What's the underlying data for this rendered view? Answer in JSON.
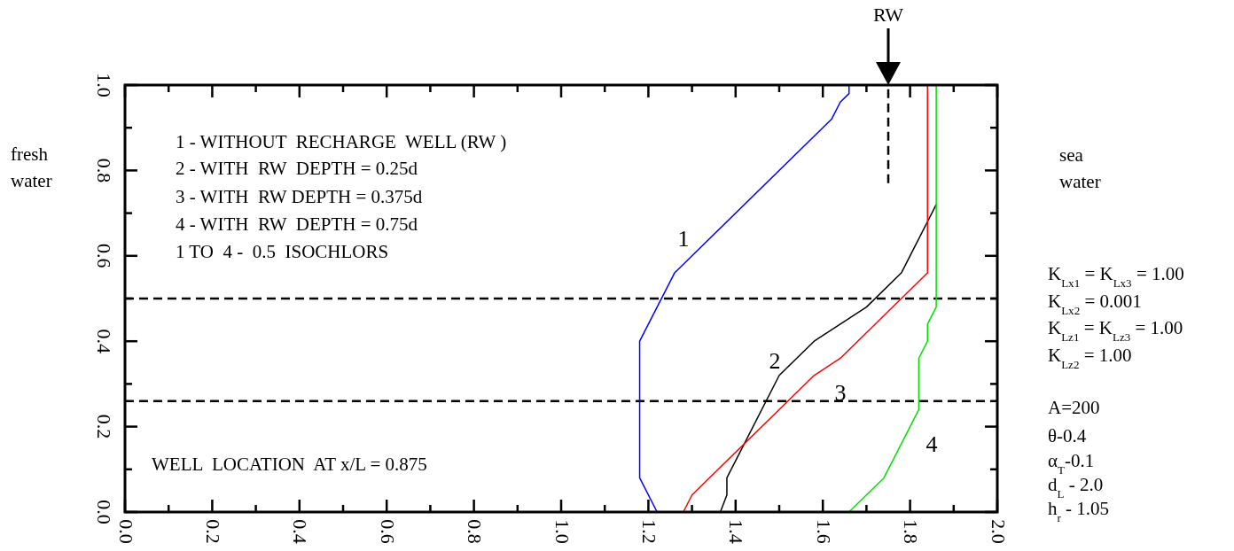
{
  "chart_data": {
    "type": "line",
    "xlim": [
      0,
      2
    ],
    "ylim": [
      0,
      1
    ],
    "xticks": [
      {
        "value": 0,
        "label": "0.0"
      },
      {
        "value": 0.1,
        "label": null
      },
      {
        "value": 0.2,
        "label": "0.2"
      },
      {
        "value": 0.3,
        "label": null
      },
      {
        "value": 0.4,
        "label": "0.4"
      },
      {
        "value": 0.5,
        "label": null
      },
      {
        "value": 0.6,
        "label": "0.6"
      },
      {
        "value": 0.7,
        "label": null
      },
      {
        "value": 0.8,
        "label": "0.8"
      },
      {
        "value": 0.9,
        "label": null
      },
      {
        "value": 1,
        "label": "1.0"
      },
      {
        "value": 1.1,
        "label": null
      },
      {
        "value": 1.2,
        "label": "1.2"
      },
      {
        "value": 1.3,
        "label": null
      },
      {
        "value": 1.4,
        "label": "1.4"
      },
      {
        "value": 1.5,
        "label": null
      },
      {
        "value": 1.6,
        "label": "1.6"
      },
      {
        "value": 1.7,
        "label": null
      },
      {
        "value": 1.8,
        "label": "1.8"
      },
      {
        "value": 1.9,
        "label": null
      },
      {
        "value": 2,
        "label": "2.0"
      }
    ],
    "yticks": [
      {
        "value": 0,
        "label": "0.0"
      },
      {
        "value": 0.1,
        "label": null
      },
      {
        "value": 0.2,
        "label": "0.2"
      },
      {
        "value": 0.3,
        "label": null
      },
      {
        "value": 0.4,
        "label": "0.4"
      },
      {
        "value": 0.5,
        "label": null
      },
      {
        "value": 0.6,
        "label": "0.6"
      },
      {
        "value": 0.7,
        "label": null
      },
      {
        "value": 0.8,
        "label": "0.8"
      },
      {
        "value": 0.9,
        "label": null
      },
      {
        "value": 1,
        "label": "1.0"
      }
    ],
    "series": [
      {
        "color": "#0000ff",
        "x": [
          1.66,
          1.66,
          1.64,
          1.62,
          1.26,
          1.18,
          1.18,
          1.22
        ],
        "values": [
          1.0,
          0.98,
          0.96,
          0.92,
          0.56,
          0.4,
          0.08,
          0
        ]
      },
      {
        "color": "#000000",
        "x": [
          1.365,
          1.38,
          1.38,
          1.5,
          1.58,
          1.7,
          1.78,
          1.86
        ],
        "values": [
          0,
          0.04,
          0.08,
          0.32,
          0.4,
          0.48,
          0.56,
          0.72
        ]
      },
      {
        "color": "#ff0000",
        "x": [
          1.28,
          1.3,
          1.58,
          1.64,
          1.84,
          1.84
        ],
        "values": [
          0,
          0.04,
          0.32,
          0.36,
          0.56,
          1.0
        ]
      },
      {
        "color": "#00e000",
        "x": [
          1.66,
          1.74,
          1.82,
          1.82,
          1.84,
          1.84,
          1.86,
          1.86
        ],
        "values": [
          0,
          0.08,
          0.24,
          0.36,
          0.4,
          0.44,
          0.48,
          1.0
        ]
      },
      {
        "color": "#000000",
        "x": [
          1.75,
          1.75
        ],
        "values": [
          0.77,
          1.0
        ],
        "line_style": "dashed"
      }
    ],
    "ref_lines": [
      {
        "axis": "y",
        "value": 0.5,
        "color": "#000000",
        "line_style": "dashed"
      },
      {
        "axis": "y",
        "value": 0.26,
        "color": "#000000",
        "line_style": "dashed"
      }
    ],
    "annotations": [
      "1 - WITHOUT  RECHARGE  WELL (RW )",
      "2 - WITH  RW  DEPTH = 0.25d",
      "3 - WITH  RW DEPTH = 0.375d",
      "4 - WITH  RW  DEPTH = 0.75d",
      "1 TO  4 -  0.5  ISOCHLORS",
      "WELL  LOCATION  AT x/L = 0.875",
      "fresh\nwater",
      "sea\nwater",
      "K$_{Lx1}$ = K$_{Lx3}$ = 1.00",
      "K$_{Lx2}$ = 0.001",
      "K$_{Lz1}$ = K$_{Lz3}$ = 1.00",
      "K$_{Lz2}$ = 1.00",
      "A=200",
      "θ-0.4",
      "α$_{T}$-0.1",
      "d$_{L}$ - 2.0",
      "h$_{r}$ - 1.05",
      "1",
      "2",
      "3",
      "4",
      "RW"
    ]
  }
}
